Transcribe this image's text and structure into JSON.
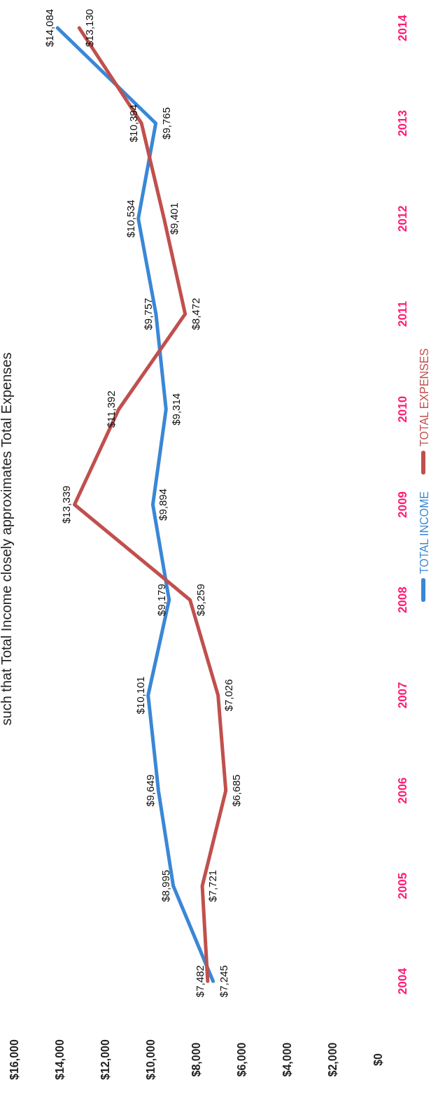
{
  "chart_data": {
    "type": "line",
    "orientation": "horizontal",
    "title": "such that Total Income closely approximates Total Expenses",
    "categories": [
      "2014",
      "2013",
      "2012",
      "2011",
      "2010",
      "2009",
      "2008",
      "2007",
      "2006",
      "2005",
      "2004"
    ],
    "series": [
      {
        "name": "TOTAL INCOME",
        "color": "#3a87d6",
        "values": [
          14084,
          9765,
          10534,
          9757,
          9314,
          9894,
          9179,
          10101,
          9649,
          8995,
          7245
        ],
        "value_labels": [
          "$14,084",
          "$9,765",
          "$10,534",
          "$9,757",
          "$9,314",
          "$9,894",
          "$9,179",
          "$10,101",
          "$9,649",
          "$8,995",
          "$7,245"
        ]
      },
      {
        "name": "TOTAL EXPENSES",
        "color": "#c0504d",
        "values": [
          13130,
          10394,
          9401,
          8472,
          11392,
          13339,
          8259,
          7026,
          6685,
          7721,
          7482
        ],
        "value_labels": [
          "$13,130",
          "$10,394",
          "$9,401",
          "$8,472",
          "$11,392",
          "$13,339",
          "$8,259",
          "$7,026",
          "$6,685",
          "$7,721",
          "$7,482"
        ]
      }
    ],
    "xlim": [
      16000,
      0
    ],
    "xticks": [
      {
        "value": 16000,
        "label": "$16,000"
      },
      {
        "value": 14000,
        "label": "$14,000"
      },
      {
        "value": 12000,
        "label": "$12,000"
      },
      {
        "value": 10000,
        "label": "$10,000"
      },
      {
        "value": 8000,
        "label": "$8,000"
      },
      {
        "value": 6000,
        "label": "$6,000"
      },
      {
        "value": 4000,
        "label": "$4,000"
      },
      {
        "value": 2000,
        "label": "$2,000"
      },
      {
        "value": 0,
        "label": "$0"
      }
    ],
    "legend": "right",
    "marker": "none",
    "line_style": "solid"
  }
}
